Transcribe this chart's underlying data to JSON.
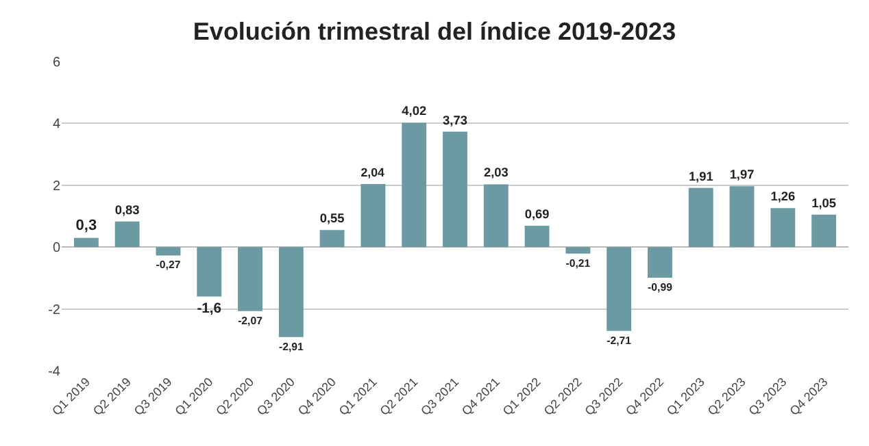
{
  "chart_data": {
    "type": "bar",
    "title": "Evolución trimestral del índice 2019-2023",
    "categories": [
      "Q1 2019",
      "Q2 2019",
      "Q3 2019",
      "Q1 2020",
      "Q2 2020",
      "Q3 2020",
      "Q4 2020",
      "Q1 2021",
      "Q2 2021",
      "Q3 2021",
      "Q4 2021",
      "Q1 2022",
      "Q2 2022",
      "Q3 2022",
      "Q4 2022",
      "Q1 2023",
      "Q2 2023",
      "Q3 2023",
      "Q4 2023"
    ],
    "values": [
      0.3,
      0.83,
      -0.27,
      -1.6,
      -2.07,
      -2.91,
      0.55,
      2.04,
      4.02,
      3.73,
      2.03,
      0.69,
      -0.21,
      -2.71,
      -0.99,
      1.91,
      1.97,
      1.26,
      1.05
    ],
    "value_labels": [
      "0,3",
      "0,83",
      "-0,27",
      "-1,6",
      "-2,07",
      "-2,91",
      "0,55",
      "2,04",
      "4,02",
      "3,73",
      "2,03",
      "0,69",
      "-0,21",
      "-2,71",
      "-0,99",
      "1,91",
      "1,97",
      "1,26",
      "1,05"
    ],
    "color": "#6b9aa3",
    "ylim": [
      -4,
      6
    ],
    "yticks": [
      -4,
      -2,
      0,
      2,
      4,
      6
    ],
    "grid": "y"
  }
}
